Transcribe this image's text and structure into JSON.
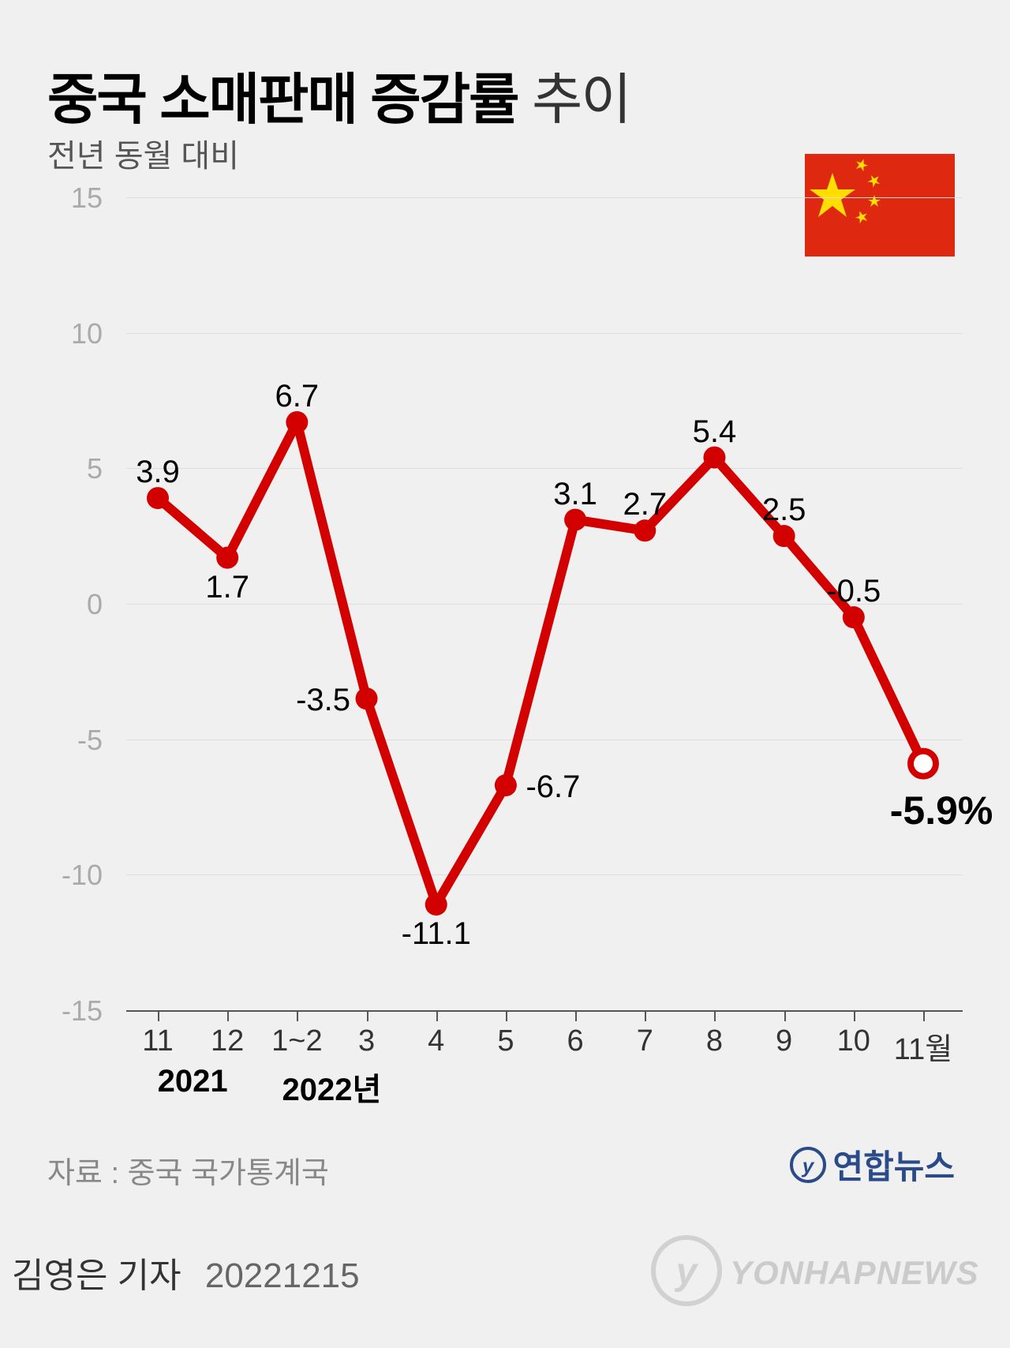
{
  "title_bold": "중국 소매판매 증감률",
  "title_light": " 추이",
  "subtitle": "전년 동월 대비",
  "chart": {
    "type": "line",
    "x_labels": [
      "11",
      "12",
      "1~2",
      "3",
      "4",
      "5",
      "6",
      "7",
      "8",
      "9",
      "10",
      "11월"
    ],
    "year_labels": [
      {
        "text": "2021",
        "at_index": 0.5
      },
      {
        "text": "2022년",
        "at_index": 2.5
      }
    ],
    "values": [
      3.9,
      1.7,
      6.7,
      -3.5,
      -11.1,
      -6.7,
      3.1,
      2.7,
      5.4,
      2.5,
      -0.5,
      -5.9
    ],
    "value_labels": [
      "3.9",
      "1.7",
      "6.7",
      "-3.5",
      "-11.1",
      "-6.7",
      "3.1",
      "2.7",
      "5.4",
      "2.5",
      "-0.5",
      "-5.9%"
    ],
    "label_positions": [
      "above",
      "below",
      "above",
      "left",
      "below",
      "right",
      "above",
      "above",
      "above",
      "above",
      "above",
      "below"
    ],
    "ylim": [
      -15,
      15
    ],
    "yticks": [
      -15,
      -10,
      -5,
      0,
      5,
      10,
      15
    ],
    "ytick_labels": [
      "-15",
      "-10",
      "-5",
      "0",
      "5",
      "10",
      "15"
    ],
    "line_color": "#d30000",
    "line_width": 12,
    "marker_radius": 14,
    "marker_fill": "#d30000",
    "final_marker_fill": "#ffffff",
    "final_marker_stroke": "#d30000",
    "final_marker_stroke_width": 8,
    "grid_color": "#dddddd",
    "axis_color": "#555555",
    "background": "#f0f0f0",
    "label_fontsize": 40,
    "final_label_fontsize": 50,
    "ylabel_color": "#aaaaaa",
    "xlabel_color": "#333333"
  },
  "source": "자료 : 중국 국가통계국",
  "brand1": "연합뉴스",
  "footer_reporter": "김영은 기자",
  "footer_date": "20221215",
  "watermark": "YONHAPNEWS",
  "flag": {
    "bg": "#de2910",
    "star": "#ffde00"
  },
  "brand_colors": {
    "text": "#2a4a8a",
    "circle_outer": "#2a4a8a",
    "circle_inner": "#ffffff"
  }
}
